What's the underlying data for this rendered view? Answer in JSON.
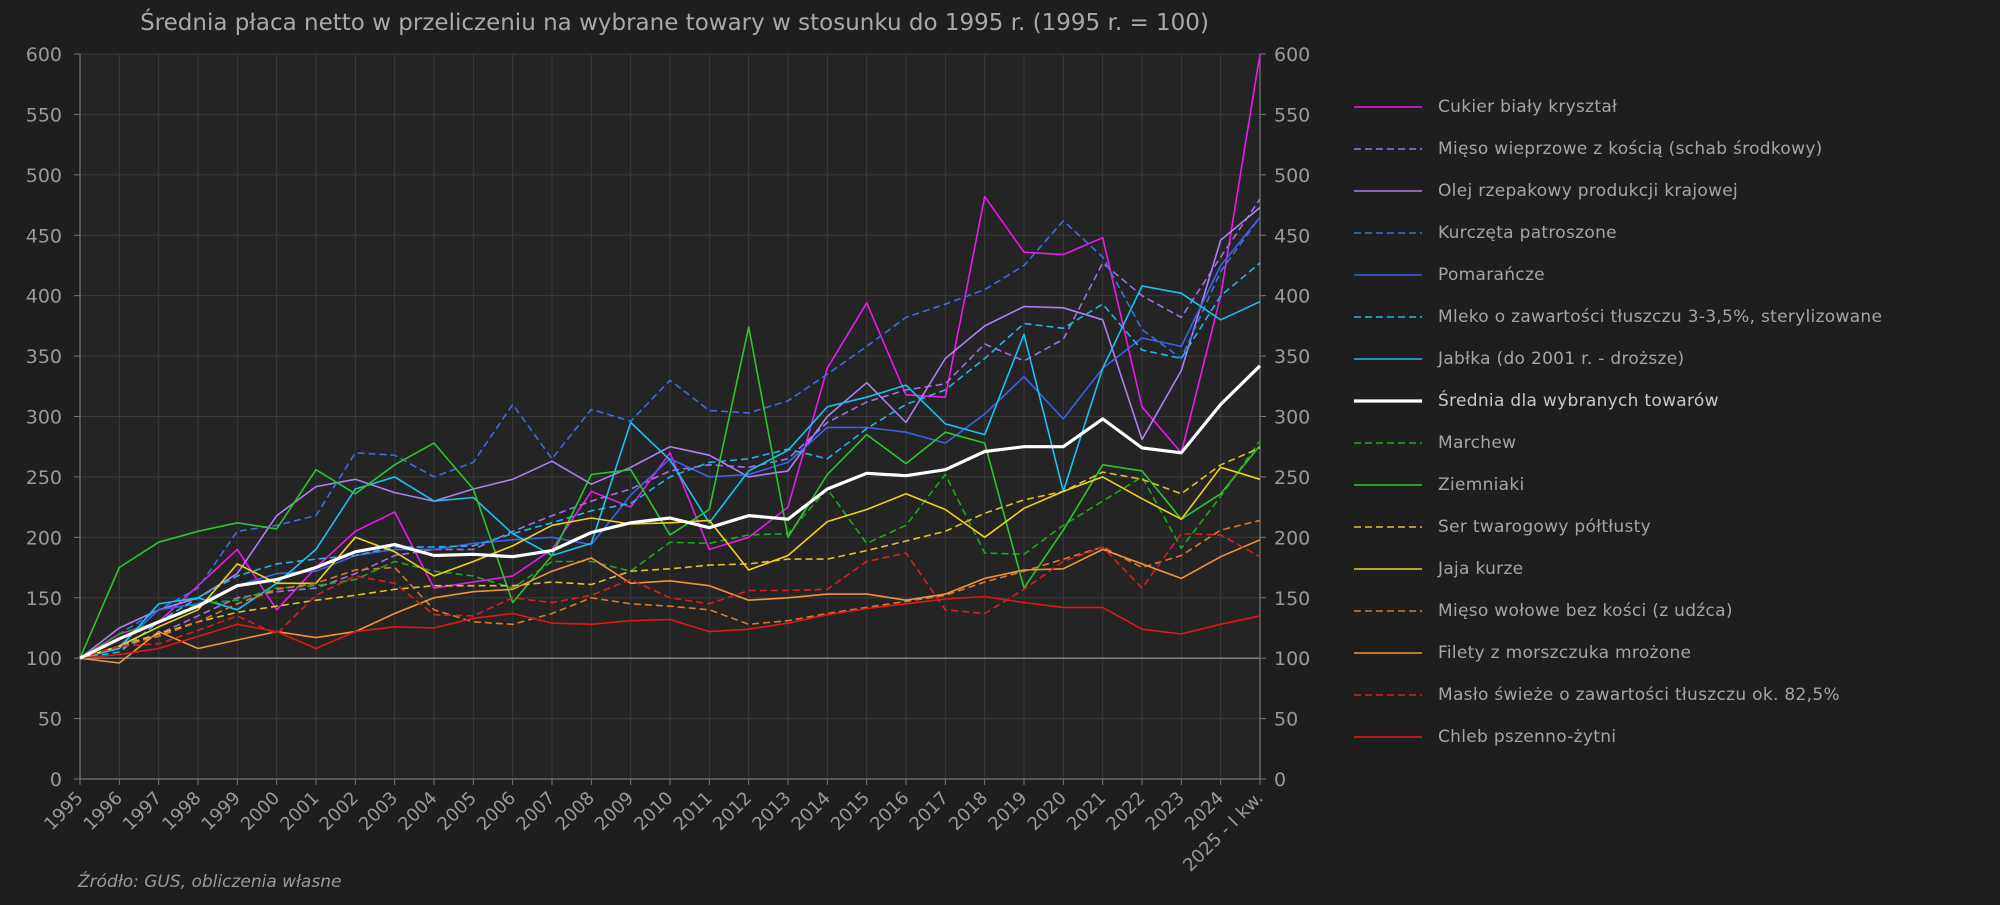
{
  "chart_data": {
    "type": "line",
    "title": "Średnia płaca netto w przeliczeniu na wybrane towary w stosunku do 1995 r. (1995 r. = 100)",
    "source": "Źródło: GUS, obliczenia własne",
    "xlabel": "",
    "ylabel": "",
    "ylim": [
      0,
      600
    ],
    "yticks": [
      0,
      50,
      100,
      150,
      200,
      250,
      300,
      350,
      400,
      450,
      500,
      550,
      600
    ],
    "secondary_y_axis": true,
    "grid": true,
    "legend_position": "right",
    "categories": [
      "1995",
      "1996",
      "1997",
      "1998",
      "1999",
      "2000",
      "2001",
      "2002",
      "2003",
      "2004",
      "2005",
      "2006",
      "2007",
      "2008",
      "2009",
      "2010",
      "2011",
      "2012",
      "2013",
      "2014",
      "2015",
      "2016",
      "2017",
      "2018",
      "2019",
      "2020",
      "2021",
      "2022",
      "2023",
      "2024",
      "2025 - I kw."
    ],
    "series": [
      {
        "name": "Cukier biały kryształ",
        "color": "#e81ce8",
        "dash": "solid",
        "width": 1.6,
        "values": [
          100,
          120,
          130,
          160,
          190,
          140,
          175,
          205,
          221,
          158,
          163,
          168,
          190,
          238,
          225,
          270,
          190,
          200,
          225,
          340,
          394,
          318,
          316,
          482,
          436,
          434,
          448,
          308,
          270,
          400,
          600
        ]
      },
      {
        "name": "Mięso wieprzowe z kością (schab środkowy)",
        "color": "#a070e8",
        "dash": "dash",
        "width": 1.6,
        "values": [
          100,
          108,
          120,
          135,
          150,
          155,
          158,
          170,
          185,
          190,
          190,
          205,
          218,
          230,
          240,
          255,
          260,
          258,
          265,
          295,
          312,
          322,
          327,
          360,
          346,
          364,
          427,
          400,
          382,
          432,
          480
        ]
      },
      {
        "name": "Olej rzepakowy produkcji krajowej",
        "color": "#b07ff0",
        "dash": "solid",
        "width": 1.6,
        "values": [
          100,
          125,
          140,
          150,
          170,
          218,
          242,
          248,
          237,
          230,
          240,
          248,
          263,
          244,
          258,
          275,
          268,
          250,
          255,
          300,
          328,
          295,
          348,
          375,
          391,
          390,
          380,
          281,
          338,
          446,
          473
        ]
      },
      {
        "name": "Kurczęta patroszone",
        "color": "#3b6fe0",
        "dash": "dash",
        "width": 1.6,
        "values": [
          100,
          120,
          140,
          158,
          205,
          210,
          218,
          270,
          268,
          250,
          262,
          310,
          265,
          306,
          296,
          330,
          305,
          303,
          313,
          335,
          358,
          382,
          393,
          405,
          425,
          462,
          432,
          372,
          348,
          420,
          465
        ]
      },
      {
        "name": "Pomarańcze",
        "color": "#3b62e8",
        "dash": "solid",
        "width": 1.6,
        "values": [
          100,
          110,
          140,
          145,
          160,
          170,
          172,
          185,
          190,
          190,
          195,
          198,
          200,
          194,
          235,
          265,
          250,
          252,
          262,
          291,
          291,
          287,
          278,
          302,
          333,
          298,
          340,
          365,
          358,
          425,
          465
        ]
      },
      {
        "name": "Mleko o zawartości tłuszczu 3-3,5%, sterylizowane",
        "color": "#22b5e8",
        "dash": "dash",
        "width": 1.6,
        "values": [
          100,
          105,
          130,
          150,
          168,
          178,
          182,
          185,
          192,
          192,
          193,
          203,
          212,
          222,
          228,
          250,
          262,
          265,
          273,
          265,
          290,
          310,
          322,
          348,
          377,
          373,
          393,
          355,
          348,
          400,
          427
        ]
      },
      {
        "name": "Jabłka (do 2001 r. - droższe)",
        "color": "#18c3f0",
        "dash": "solid",
        "width": 1.6,
        "values": [
          100,
          108,
          145,
          150,
          140,
          162,
          190,
          240,
          250,
          230,
          233,
          203,
          185,
          195,
          295,
          264,
          212,
          255,
          272,
          308,
          316,
          326,
          294,
          285,
          368,
          238,
          340,
          408,
          402,
          380,
          395
        ]
      },
      {
        "name": "Średnia dla wybranych towarów",
        "color": "#ffffff",
        "dash": "solid",
        "width": 3.2,
        "values": [
          100,
          116,
          130,
          143,
          160,
          165,
          175,
          188,
          194,
          185,
          186,
          184,
          189,
          204,
          212,
          216,
          208,
          218,
          215,
          240,
          253,
          251,
          256,
          271,
          275,
          275,
          298,
          274,
          270,
          310,
          342
        ]
      },
      {
        "name": "Marchew",
        "color": "#1ea81e",
        "dash": "dash",
        "width": 1.6,
        "values": [
          100,
          120,
          130,
          145,
          148,
          158,
          160,
          165,
          180,
          172,
          168,
          158,
          180,
          180,
          172,
          196,
          195,
          202,
          203,
          240,
          195,
          210,
          252,
          187,
          186,
          210,
          230,
          250,
          191,
          234,
          280
        ]
      },
      {
        "name": "Ziemniaki",
        "color": "#2fc42f",
        "dash": "solid",
        "width": 1.6,
        "values": [
          100,
          175,
          196,
          205,
          212,
          207,
          256,
          236,
          260,
          278,
          240,
          146,
          185,
          252,
          256,
          202,
          223,
          374,
          200,
          252,
          285,
          261,
          287,
          278,
          158,
          206,
          260,
          255,
          215,
          236,
          276
        ]
      },
      {
        "name": "Ser twarogowy półtłusty",
        "color": "#e0c02a",
        "dash": "dash",
        "width": 1.6,
        "values": [
          100,
          110,
          120,
          130,
          138,
          143,
          148,
          152,
          157,
          160,
          160,
          160,
          163,
          161,
          172,
          174,
          177,
          178,
          182,
          182,
          189,
          197,
          205,
          220,
          231,
          238,
          254,
          248,
          236,
          260,
          274
        ]
      },
      {
        "name": "Jaja kurze",
        "color": "#f0d21e",
        "dash": "solid",
        "width": 1.6,
        "values": [
          100,
          110,
          126,
          140,
          178,
          162,
          162,
          200,
          188,
          168,
          180,
          193,
          210,
          216,
          211,
          212,
          214,
          173,
          185,
          213,
          223,
          236,
          223,
          200,
          224,
          238,
          250,
          232,
          215,
          258,
          248
        ]
      },
      {
        "name": "Mięso wołowe bez kości (z udźca)",
        "color": "#d97a2a",
        "dash": "dash",
        "width": 1.6,
        "values": [
          100,
          110,
          118,
          130,
          145,
          157,
          162,
          173,
          175,
          140,
          130,
          128,
          137,
          150,
          145,
          143,
          140,
          128,
          131,
          137,
          142,
          147,
          152,
          163,
          172,
          182,
          192,
          175,
          185,
          206,
          214
        ]
      },
      {
        "name": "Filety z morszczuka mrożone",
        "color": "#f0943a",
        "dash": "solid",
        "width": 1.6,
        "values": [
          100,
          96,
          122,
          108,
          115,
          122,
          117,
          122,
          137,
          150,
          155,
          157,
          172,
          183,
          162,
          164,
          160,
          148,
          150,
          153,
          153,
          148,
          153,
          166,
          173,
          174,
          190,
          178,
          166,
          184,
          198
        ]
      },
      {
        "name": "Masło świeże o zawartości tłuszczu ok. 82,5%",
        "color": "#d42020",
        "dash": "dash",
        "width": 1.6,
        "values": [
          100,
          110,
          112,
          123,
          135,
          120,
          152,
          168,
          162,
          136,
          135,
          150,
          146,
          152,
          165,
          150,
          145,
          156,
          156,
          157,
          180,
          187,
          140,
          137,
          157,
          180,
          192,
          158,
          203,
          202,
          184
        ]
      },
      {
        "name": "Chleb pszenno-żytni",
        "color": "#e01818",
        "dash": "solid",
        "width": 1.6,
        "values": [
          100,
          103,
          108,
          118,
          128,
          122,
          108,
          122,
          126,
          125,
          133,
          137,
          129,
          128,
          131,
          132,
          122,
          124,
          129,
          136,
          141,
          145,
          149,
          151,
          146,
          142,
          142,
          124,
          120,
          128,
          135
        ]
      }
    ]
  }
}
